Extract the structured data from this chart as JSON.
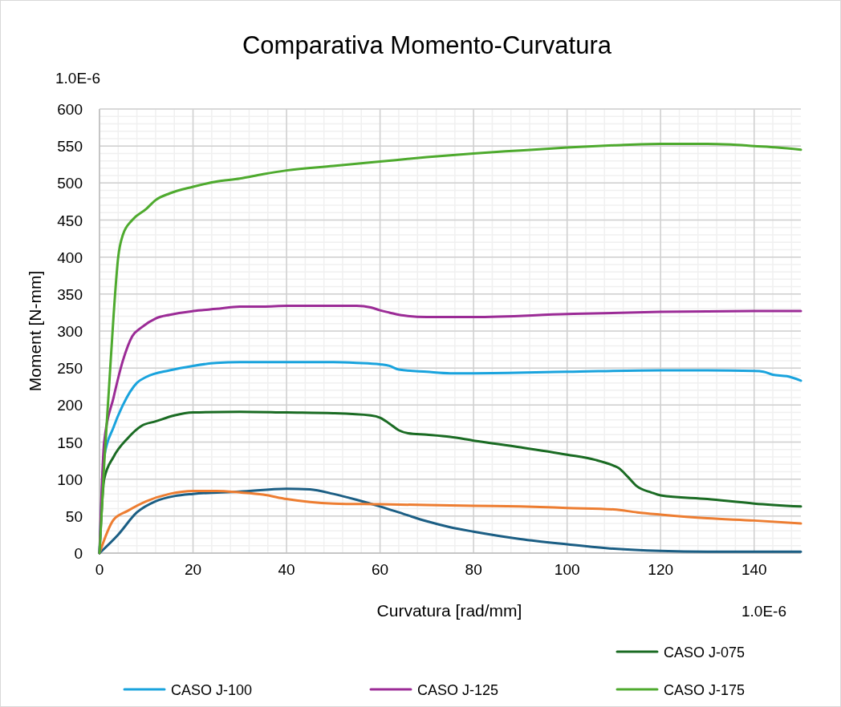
{
  "chart_data": {
    "type": "line",
    "title": "Comparativa Momento-Curvatura",
    "xlabel": "Curvatura [rad/mm]",
    "ylabel": "Moment [N-mm]",
    "annotations": [
      "1.0E-6",
      "1.0E-6"
    ],
    "xlim": [
      0,
      150
    ],
    "xticks": [
      0,
      20,
      40,
      60,
      80,
      100,
      120,
      140
    ],
    "ylim": [
      0,
      600
    ],
    "yticks": [
      0,
      50,
      100,
      150,
      200,
      250,
      300,
      350,
      400,
      450,
      500,
      550,
      600
    ],
    "grid": true,
    "legend": "bottom",
    "marker": "none",
    "line_style": "solid",
    "series": [
      {
        "color": "#1b5e84",
        "x": [
          0,
          4,
          8,
          12,
          16,
          20,
          30,
          40,
          45,
          50,
          55,
          60,
          65,
          70,
          75,
          80,
          90,
          100,
          110,
          120,
          130,
          150
        ],
        "values": [
          0,
          25,
          55,
          70,
          77,
          80,
          83,
          87,
          86,
          80,
          72,
          63,
          53,
          43,
          35,
          29,
          19,
          12,
          6,
          3,
          2,
          2
        ]
      },
      {
        "color": "#ed7d31",
        "x": [
          0,
          3,
          6,
          10,
          15,
          20,
          25,
          30,
          35,
          40,
          45,
          50,
          60,
          70,
          80,
          90,
          100,
          110,
          115,
          120,
          130,
          140,
          150
        ],
        "values": [
          0,
          45,
          57,
          70,
          80,
          84,
          84,
          82,
          79,
          73,
          69,
          67,
          66,
          65,
          64,
          63,
          61,
          59,
          55,
          52,
          47,
          44,
          40
        ]
      },
      {
        "name": "CASO J-075",
        "color": "#1a6b23",
        "x": [
          0,
          1,
          3,
          6,
          9,
          12,
          16,
          20,
          30,
          40,
          50,
          58,
          60,
          62,
          64,
          66,
          70,
          75,
          80,
          90,
          100,
          106,
          110,
          111,
          113,
          115,
          118,
          120,
          130,
          140,
          150
        ],
        "values": [
          0,
          100,
          130,
          155,
          172,
          178,
          186,
          190,
          191,
          190,
          189,
          186,
          183,
          175,
          166,
          162,
          160,
          157,
          152,
          143,
          133,
          126,
          118,
          115,
          103,
          90,
          82,
          78,
          73,
          67,
          63
        ]
      },
      {
        "name": "CASO J-100",
        "color": "#19a3dd",
        "x": [
          0,
          1,
          3,
          5,
          8,
          10,
          15,
          20,
          25,
          30,
          40,
          50,
          55,
          60,
          62,
          64,
          70,
          75,
          80,
          100,
          120,
          130,
          140,
          142,
          144,
          147,
          150
        ],
        "values": [
          0,
          130,
          170,
          200,
          230,
          238,
          247,
          253,
          257,
          258,
          258,
          258,
          257,
          255,
          253,
          248,
          245,
          243,
          243,
          245,
          247,
          247,
          246,
          245,
          241,
          239,
          233
        ]
      },
      {
        "name": "CASO J-125",
        "color": "#9b2b96",
        "x": [
          0,
          1,
          3,
          5,
          7,
          9,
          12,
          15,
          20,
          25,
          30,
          35,
          40,
          50,
          55,
          58,
          60,
          62,
          65,
          70,
          75,
          80,
          100,
          120,
          140,
          150
        ],
        "values": [
          0,
          150,
          210,
          260,
          293,
          305,
          317,
          322,
          327,
          330,
          333,
          333,
          334,
          334,
          334,
          332,
          328,
          325,
          321,
          319,
          319,
          319,
          323,
          326,
          327,
          327
        ]
      },
      {
        "name": "CASO J-175",
        "color": "#4eaa2e",
        "x": [
          0,
          1,
          2,
          3,
          4,
          5,
          7,
          10,
          12,
          15,
          20,
          25,
          30,
          35,
          40,
          50,
          60,
          70,
          80,
          90,
          100,
          110,
          120,
          125,
          130,
          135,
          140,
          145,
          150
        ],
        "values": [
          0,
          120,
          220,
          320,
          400,
          430,
          450,
          465,
          477,
          486,
          495,
          502,
          506,
          512,
          517,
          523,
          529,
          535,
          540,
          544,
          548,
          551,
          553,
          553,
          553,
          552,
          550,
          548,
          545
        ]
      }
    ]
  }
}
